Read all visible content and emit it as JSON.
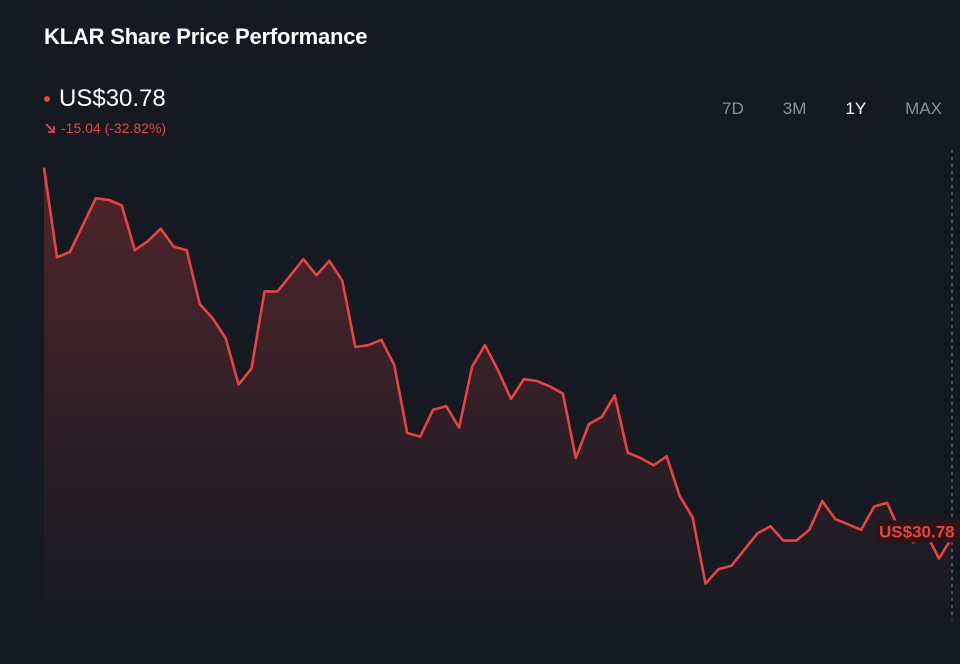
{
  "header": {
    "title": "KLAR Share Price Performance",
    "price": "US$30.78",
    "change": "-15.04 (-32.82%)"
  },
  "range_tabs": [
    {
      "label": "7D",
      "active": false
    },
    {
      "label": "3M",
      "active": false
    },
    {
      "label": "1Y",
      "active": true
    },
    {
      "label": "MAX",
      "active": false
    }
  ],
  "colors": {
    "background": "#151a22",
    "line": "#e84242",
    "accent_down": "#e84242"
  },
  "icons": {
    "change": "arrow-down-right-icon",
    "price_marker": "dot-icon"
  },
  "chart_data": {
    "type": "area",
    "title": "KLAR Share Price Performance",
    "xlabel": "",
    "ylabel": "",
    "ylim": [
      25.5,
      52.5
    ],
    "grid": false,
    "last_value_label": "US$30.78",
    "values": [
      51.4,
      46.4,
      46.7,
      48.2,
      49.7,
      49.6,
      49.3,
      46.8,
      47.3,
      48.0,
      47.0,
      46.8,
      43.8,
      43.0,
      41.9,
      39.3,
      40.2,
      44.5,
      44.5,
      45.4,
      46.3,
      45.4,
      46.2,
      45.1,
      41.4,
      41.5,
      41.8,
      40.4,
      36.6,
      36.4,
      37.9,
      38.1,
      36.9,
      40.3,
      41.5,
      40.1,
      38.5,
      39.6,
      39.5,
      39.2,
      38.8,
      35.2,
      37.1,
      37.5,
      38.7,
      35.5,
      35.2,
      34.8,
      35.3,
      33.1,
      31.9,
      28.2,
      29.0,
      29.2,
      30.1,
      31.0,
      31.4,
      30.6,
      30.6,
      31.2,
      32.8,
      31.8,
      31.5,
      31.2,
      32.5,
      32.7,
      31.1,
      30.5,
      31.0,
      29.6,
      30.78
    ]
  }
}
